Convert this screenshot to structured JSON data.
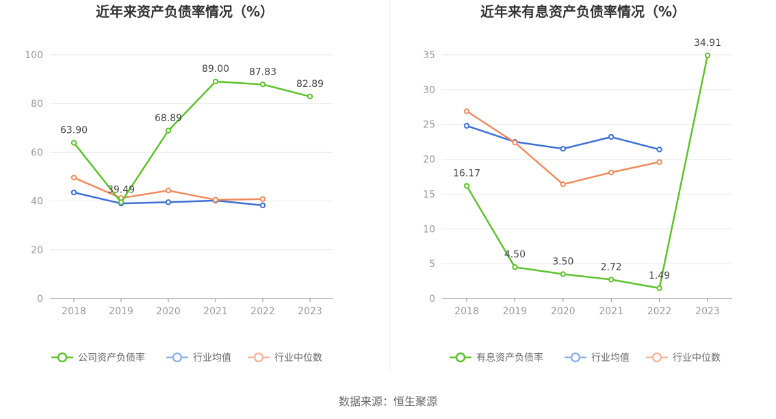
{
  "source": "数据来源：恒生聚源",
  "chart_data": [
    {
      "type": "line",
      "title": "近年来资产负债率情况（%）",
      "categories": [
        "2018",
        "2019",
        "2020",
        "2021",
        "2022",
        "2023"
      ],
      "ylim": [
        0,
        100
      ],
      "yticks": [
        "0",
        "20",
        "40",
        "60",
        "80",
        "100"
      ],
      "grid": true,
      "legend_position": "bottom",
      "series": [
        {
          "name": "公司资产负债率",
          "color": "#5cc22a",
          "values": [
            63.9,
            39.49,
            68.89,
            89.0,
            87.83,
            82.89
          ],
          "labels": [
            "63.90",
            "39.49",
            "68.89",
            "89.00",
            "87.83",
            "82.89"
          ]
        },
        {
          "name": "行业均值",
          "color": "#3b6fd4",
          "values": [
            43.5,
            39.0,
            39.5,
            40.2,
            38.2,
            null
          ]
        },
        {
          "name": "行业中位数",
          "color": "#f08a5d",
          "values": [
            49.6,
            41.2,
            44.3,
            40.5,
            40.8,
            null
          ]
        }
      ]
    },
    {
      "type": "line",
      "title": "近年来有息资产负债率情况（%）",
      "categories": [
        "2018",
        "2019",
        "2020",
        "2021",
        "2022",
        "2023"
      ],
      "ylim": [
        0,
        35
      ],
      "yticks": [
        "0",
        "5",
        "10",
        "15",
        "20",
        "25",
        "30",
        "35"
      ],
      "grid": true,
      "legend_position": "bottom",
      "series": [
        {
          "name": "有息资产负债率",
          "color": "#5cc22a",
          "values": [
            16.17,
            4.5,
            3.5,
            2.72,
            1.49,
            34.91
          ],
          "labels": [
            "16.17",
            "4.50",
            "3.50",
            "2.72",
            "1.49",
            "34.91"
          ]
        },
        {
          "name": "行业均值",
          "color": "#3b6fd4",
          "values": [
            24.8,
            22.5,
            21.5,
            23.2,
            21.4,
            null
          ]
        },
        {
          "name": "行业中位数",
          "color": "#f08a5d",
          "values": [
            26.9,
            22.4,
            16.4,
            18.1,
            19.6,
            null
          ]
        }
      ]
    }
  ]
}
